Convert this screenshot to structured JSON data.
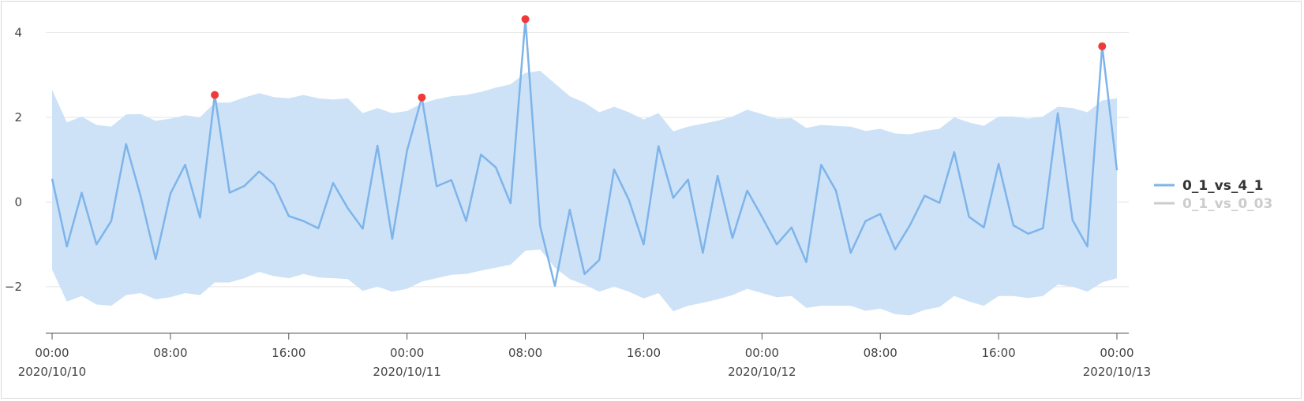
{
  "chart_data": {
    "type": "line",
    "x": [
      "2020-10-10 00:00",
      "2020-10-10 01:00",
      "2020-10-10 02:00",
      "2020-10-10 03:00",
      "2020-10-10 04:00",
      "2020-10-10 05:00",
      "2020-10-10 06:00",
      "2020-10-10 07:00",
      "2020-10-10 08:00",
      "2020-10-10 09:00",
      "2020-10-10 10:00",
      "2020-10-10 11:00",
      "2020-10-10 12:00",
      "2020-10-10 13:00",
      "2020-10-10 14:00",
      "2020-10-10 15:00",
      "2020-10-10 16:00",
      "2020-10-10 17:00",
      "2020-10-10 18:00",
      "2020-10-10 19:00",
      "2020-10-10 20:00",
      "2020-10-10 21:00",
      "2020-10-10 22:00",
      "2020-10-10 23:00",
      "2020-10-11 00:00",
      "2020-10-11 01:00",
      "2020-10-11 02:00",
      "2020-10-11 03:00",
      "2020-10-11 04:00",
      "2020-10-11 05:00",
      "2020-10-11 06:00",
      "2020-10-11 07:00",
      "2020-10-11 08:00",
      "2020-10-11 09:00",
      "2020-10-11 10:00",
      "2020-10-11 11:00",
      "2020-10-11 12:00",
      "2020-10-11 13:00",
      "2020-10-11 14:00",
      "2020-10-11 15:00",
      "2020-10-11 16:00",
      "2020-10-11 17:00",
      "2020-10-11 18:00",
      "2020-10-11 19:00",
      "2020-10-11 20:00",
      "2020-10-11 21:00",
      "2020-10-11 22:00",
      "2020-10-11 23:00",
      "2020-10-12 00:00",
      "2020-10-12 01:00",
      "2020-10-12 02:00",
      "2020-10-12 03:00",
      "2020-10-12 04:00",
      "2020-10-12 05:00",
      "2020-10-12 06:00",
      "2020-10-12 07:00",
      "2020-10-12 08:00",
      "2020-10-12 09:00",
      "2020-10-12 10:00",
      "2020-10-12 11:00",
      "2020-10-12 12:00",
      "2020-10-12 13:00",
      "2020-10-12 14:00",
      "2020-10-12 15:00",
      "2020-10-12 16:00",
      "2020-10-12 17:00",
      "2020-10-12 18:00",
      "2020-10-12 19:00",
      "2020-10-12 20:00",
      "2020-10-12 21:00",
      "2020-10-12 22:00",
      "2020-10-12 23:00",
      "2020-10-13 00:00"
    ],
    "series": [
      {
        "name": "0_1_vs_4_1",
        "color": "#7eb4ea",
        "values": [
          0.55,
          -1.05,
          0.22,
          -1.0,
          -0.45,
          1.37,
          0.12,
          -1.35,
          0.2,
          0.88,
          -0.37,
          2.53,
          0.22,
          0.38,
          0.72,
          0.42,
          -0.33,
          -0.45,
          -0.62,
          0.45,
          -0.15,
          -0.63,
          1.33,
          -0.87,
          1.22,
          2.47,
          0.37,
          0.52,
          -0.45,
          1.12,
          0.82,
          -0.03,
          4.32,
          -0.57,
          -1.98,
          -0.18,
          -1.7,
          -1.37,
          0.77,
          0.05,
          -1.0,
          1.32,
          0.1,
          0.53,
          -1.2,
          0.62,
          -0.85,
          0.27,
          -0.35,
          -1.0,
          -0.6,
          -1.42,
          0.88,
          0.27,
          -1.2,
          -0.45,
          -0.28,
          -1.12,
          -0.55,
          0.15,
          -0.02,
          1.18,
          -0.35,
          -0.6,
          0.9,
          -0.55,
          -0.75,
          -0.62,
          2.1,
          -0.43,
          -1.05,
          3.68,
          0.75
        ]
      },
      {
        "name": "0_1_vs_0_03",
        "color": "#cccccc",
        "hidden": true
      }
    ],
    "band": {
      "color": "#cde2f7",
      "upper": [
        2.65,
        1.88,
        2.02,
        1.82,
        1.78,
        2.07,
        2.08,
        1.92,
        1.97,
        2.05,
        2.0,
        2.35,
        2.35,
        2.47,
        2.57,
        2.48,
        2.45,
        2.53,
        2.45,
        2.42,
        2.45,
        2.1,
        2.22,
        2.1,
        2.15,
        2.33,
        2.43,
        2.5,
        2.53,
        2.6,
        2.7,
        2.78,
        3.05,
        3.1,
        2.8,
        2.5,
        2.35,
        2.12,
        2.25,
        2.12,
        1.95,
        2.1,
        1.67,
        1.78,
        1.85,
        1.92,
        2.02,
        2.18,
        2.08,
        1.97,
        1.98,
        1.75,
        1.82,
        1.8,
        1.78,
        1.68,
        1.73,
        1.62,
        1.6,
        1.68,
        1.73,
        2.0,
        1.88,
        1.8,
        2.02,
        2.02,
        1.97,
        2.02,
        2.25,
        2.22,
        2.12,
        2.4,
        2.45
      ],
      "lower": [
        -1.6,
        -2.35,
        -2.22,
        -2.42,
        -2.45,
        -2.2,
        -2.15,
        -2.3,
        -2.25,
        -2.15,
        -2.2,
        -1.9,
        -1.9,
        -1.8,
        -1.65,
        -1.75,
        -1.8,
        -1.7,
        -1.78,
        -1.8,
        -1.82,
        -2.1,
        -2.0,
        -2.12,
        -2.05,
        -1.88,
        -1.8,
        -1.72,
        -1.7,
        -1.62,
        -1.55,
        -1.48,
        -1.15,
        -1.12,
        -1.55,
        -1.82,
        -1.95,
        -2.12,
        -2.0,
        -2.12,
        -2.28,
        -2.15,
        -2.58,
        -2.45,
        -2.38,
        -2.3,
        -2.2,
        -2.05,
        -2.15,
        -2.25,
        -2.22,
        -2.5,
        -2.45,
        -2.45,
        -2.45,
        -2.57,
        -2.52,
        -2.65,
        -2.68,
        -2.55,
        -2.48,
        -2.22,
        -2.35,
        -2.45,
        -2.22,
        -2.22,
        -2.27,
        -2.22,
        -1.95,
        -2.0,
        -2.12,
        -1.9,
        -1.8
      ]
    },
    "anomalies": [
      {
        "x": "2020-10-10 11:00",
        "y": 2.53
      },
      {
        "x": "2020-10-11 01:00",
        "y": 2.47
      },
      {
        "x": "2020-10-11 08:00",
        "y": 4.32
      },
      {
        "x": "2020-10-12 23:00",
        "y": 3.68
      }
    ],
    "anomaly_color": "#f03a3a",
    "ylim": [
      -3.1,
      4.4
    ],
    "yticks": [
      4,
      2,
      0,
      -2
    ],
    "ytick_labels": [
      "4",
      "2",
      "0",
      "−2"
    ],
    "xticks": [
      {
        "x": "2020-10-10 00:00",
        "time": "00:00",
        "date": "2020/10/10"
      },
      {
        "x": "2020-10-10 08:00",
        "time": "08:00",
        "date": ""
      },
      {
        "x": "2020-10-10 16:00",
        "time": "16:00",
        "date": ""
      },
      {
        "x": "2020-10-11 00:00",
        "time": "00:00",
        "date": "2020/10/11"
      },
      {
        "x": "2020-10-11 08:00",
        "time": "08:00",
        "date": ""
      },
      {
        "x": "2020-10-11 16:00",
        "time": "16:00",
        "date": ""
      },
      {
        "x": "2020-10-12 00:00",
        "time": "00:00",
        "date": "2020/10/12"
      },
      {
        "x": "2020-10-12 08:00",
        "time": "08:00",
        "date": ""
      },
      {
        "x": "2020-10-12 16:00",
        "time": "16:00",
        "date": ""
      },
      {
        "x": "2020-10-13 00:00",
        "time": "00:00",
        "date": "2020/10/13"
      }
    ],
    "grid": true,
    "legend_position": "right",
    "title": "",
    "xlabel": "",
    "ylabel": ""
  }
}
